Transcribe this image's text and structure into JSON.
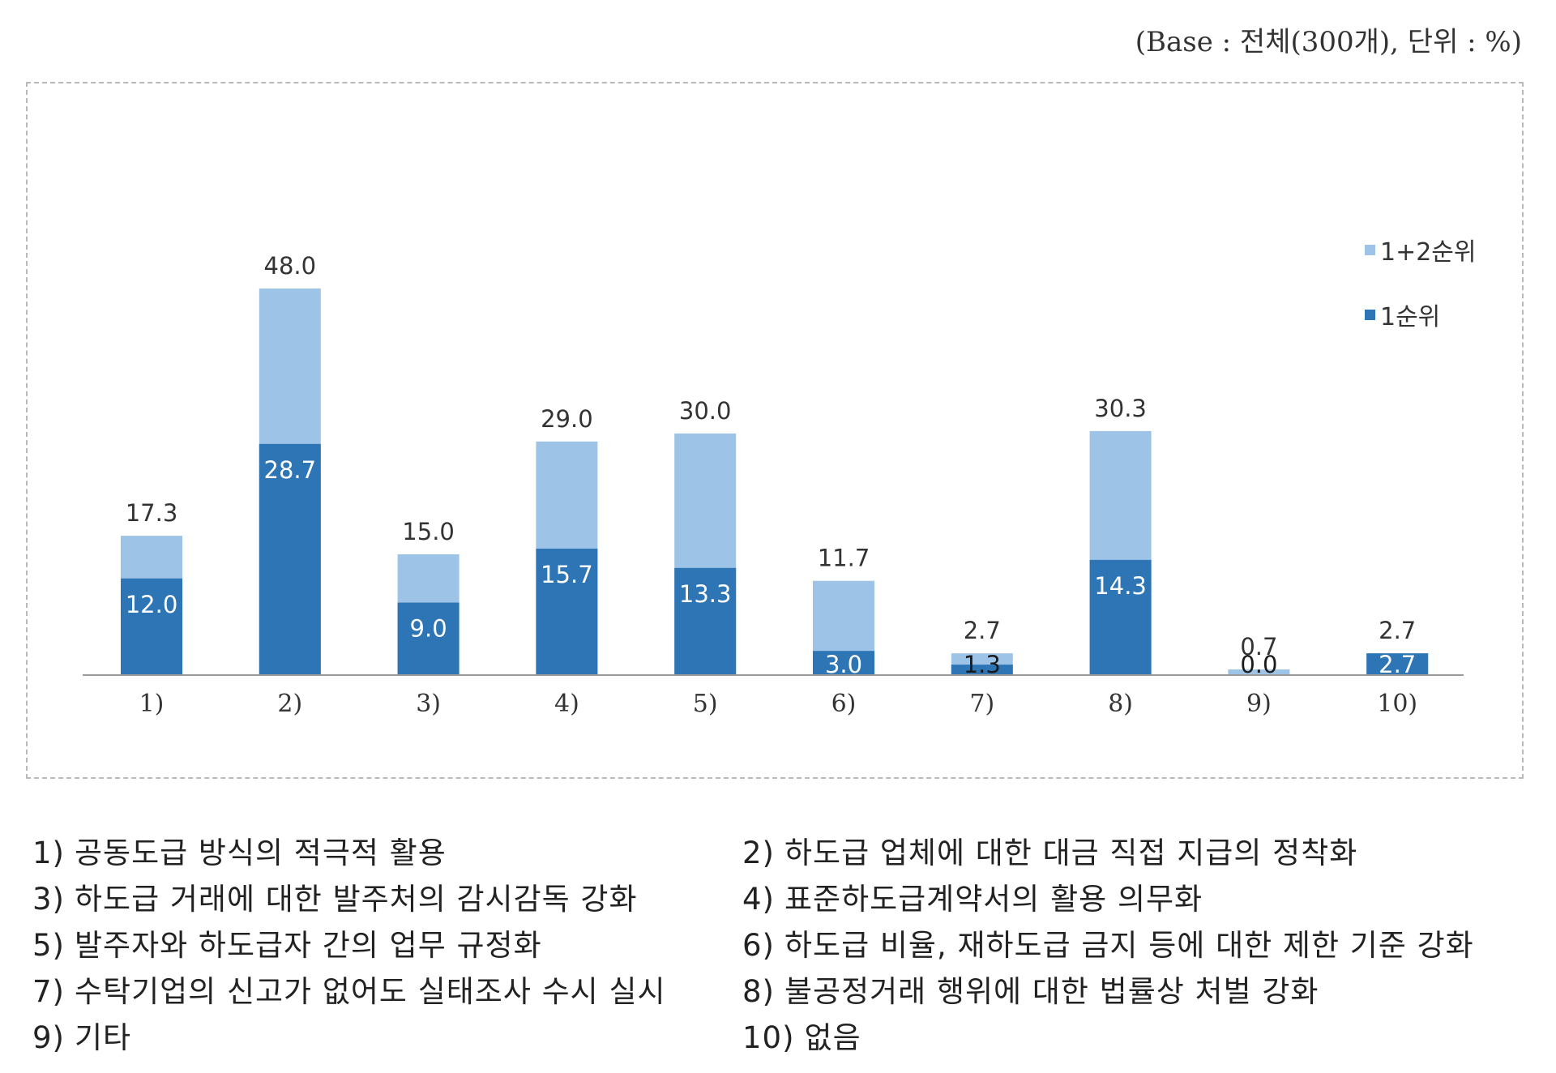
{
  "base_note": "(Base : 전체(300개), 단위 : %)",
  "colors": {
    "light": "#9DC3E6",
    "dark": "#2E75B6",
    "axis": "#9a9a9a",
    "outer_label": "#333333",
    "inner_label": "#ffffff"
  },
  "chart_data": {
    "type": "bar",
    "categories": [
      "1)",
      "2)",
      "3)",
      "4)",
      "5)",
      "6)",
      "7)",
      "8)",
      "9)",
      "10)"
    ],
    "series": [
      {
        "name": "1+2순위",
        "values": [
          17.3,
          48.0,
          15.0,
          29.0,
          30.0,
          11.7,
          2.7,
          30.3,
          0.7,
          2.7
        ]
      },
      {
        "name": "1순위",
        "values": [
          12.0,
          28.7,
          9.0,
          15.7,
          13.3,
          3.0,
          1.3,
          14.3,
          0.0,
          2.7
        ]
      }
    ],
    "value_labels_outer": [
      "17.3",
      "48.0",
      "15.0",
      "29.0",
      "30.0",
      "11.7",
      "2.7",
      "30.3",
      "0.7",
      "2.7"
    ],
    "value_labels_inner": [
      "12.0",
      "28.7",
      "9.0",
      "15.7",
      "13.3",
      "3.0",
      "1.3",
      "14.3",
      "0.0",
      "2.7"
    ],
    "ylim": [
      0,
      48
    ],
    "grid": false,
    "legend_position": "top-right"
  },
  "legend": [
    {
      "label": "1+2순위",
      "color": "#9DC3E6"
    },
    {
      "label": "1순위",
      "color": "#2E75B6"
    }
  ],
  "category_list": [
    {
      "num": "1)",
      "text": "공동도급 방식의 적극적 활용"
    },
    {
      "num": "2)",
      "text": "하도급 업체에 대한 대금 직접 지급의 정착화"
    },
    {
      "num": "3)",
      "text": "하도급 거래에 대한 발주처의 감시감독 강화"
    },
    {
      "num": "4)",
      "text": "표준하도급계약서의 활용 의무화"
    },
    {
      "num": "5)",
      "text": "발주자와 하도급자 간의 업무 규정화"
    },
    {
      "num": "6)",
      "text": "하도급 비율, 재하도급 금지 등에 대한 제한 기준 강화"
    },
    {
      "num": "7)",
      "text": "수탁기업의 신고가 없어도 실태조사 수시 실시"
    },
    {
      "num": "8)",
      "text": "불공정거래 행위에 대한 법률상 처벌 강화"
    },
    {
      "num": "9)",
      "text": "기타"
    },
    {
      "num": "10)",
      "text": "없음"
    }
  ]
}
